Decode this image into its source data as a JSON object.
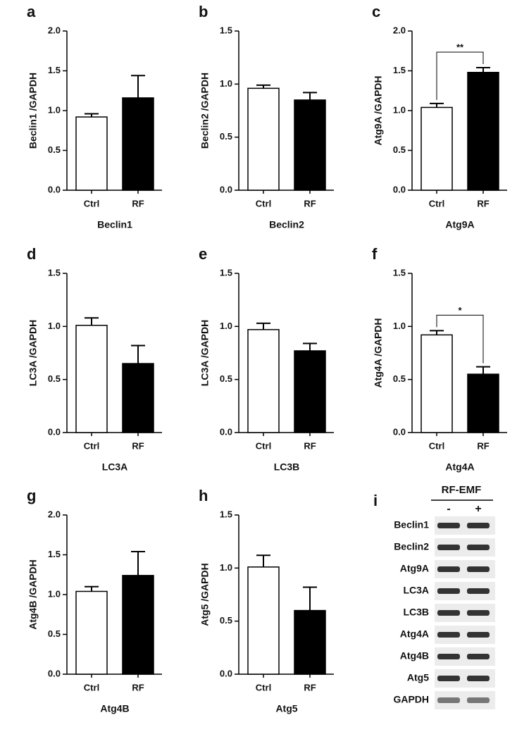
{
  "chart_data": [
    {
      "type": "bar",
      "panel": "a",
      "ylabel": "Beclin1 /GAPDH",
      "xlabel": "Beclin1",
      "categories": [
        "Ctrl",
        "RF"
      ],
      "values": [
        0.92,
        1.16
      ],
      "errors": [
        0.04,
        0.28
      ],
      "colors": [
        "#ffffff",
        "#000000"
      ],
      "ylim": [
        0,
        2
      ],
      "yticks": [
        {
          "value": 0,
          "label": "0.0"
        },
        {
          "value": 0.5,
          "label": "0.5"
        },
        {
          "value": 1,
          "label": "1.0"
        },
        {
          "value": 1.5,
          "label": "1.5"
        },
        {
          "value": 2,
          "label": "2.0"
        }
      ]
    },
    {
      "type": "bar",
      "panel": "b",
      "ylabel": "Beclin2 /GAPDH",
      "xlabel": "Beclin2",
      "categories": [
        "Ctrl",
        "RF"
      ],
      "values": [
        0.96,
        0.85
      ],
      "errors": [
        0.03,
        0.07
      ],
      "colors": [
        "#ffffff",
        "#000000"
      ],
      "ylim": [
        0,
        1.5
      ],
      "yticks": [
        {
          "value": 0,
          "label": "0.0"
        },
        {
          "value": 0.5,
          "label": "0.5"
        },
        {
          "value": 1,
          "label": "1.0"
        },
        {
          "value": 1.5,
          "label": "1.5"
        }
      ]
    },
    {
      "type": "bar",
      "panel": "c",
      "ylabel": "Atg9A /GAPDH",
      "xlabel": "Atg9A",
      "annotation": "**",
      "categories": [
        "Ctrl",
        "RF"
      ],
      "values": [
        1.04,
        1.48
      ],
      "errors": [
        0.05,
        0.06
      ],
      "colors": [
        "#ffffff",
        "#000000"
      ],
      "ylim": [
        0,
        2
      ],
      "yticks": [
        {
          "value": 0,
          "label": "0.0"
        },
        {
          "value": 0.5,
          "label": "0.5"
        },
        {
          "value": 1,
          "label": "1.0"
        },
        {
          "value": 1.5,
          "label": "1.5"
        },
        {
          "value": 2,
          "label": "2.0"
        }
      ]
    },
    {
      "type": "bar",
      "panel": "d",
      "ylabel": "LC3A /GAPDH",
      "xlabel": "LC3A",
      "categories": [
        "Ctrl",
        "RF"
      ],
      "values": [
        1.01,
        0.65
      ],
      "errors": [
        0.07,
        0.17
      ],
      "colors": [
        "#ffffff",
        "#000000"
      ],
      "ylim": [
        0,
        1.5
      ],
      "yticks": [
        {
          "value": 0,
          "label": "0.0"
        },
        {
          "value": 0.5,
          "label": "0.5"
        },
        {
          "value": 1,
          "label": "1.0"
        },
        {
          "value": 1.5,
          "label": "1.5"
        }
      ]
    },
    {
      "type": "bar",
      "panel": "e",
      "ylabel": "LC3A /GAPDH",
      "xlabel": "LC3B",
      "categories": [
        "Ctrl",
        "RF"
      ],
      "values": [
        0.97,
        0.77
      ],
      "errors": [
        0.06,
        0.07
      ],
      "colors": [
        "#ffffff",
        "#000000"
      ],
      "ylim": [
        0,
        1.5
      ],
      "yticks": [
        {
          "value": 0,
          "label": "0.0"
        },
        {
          "value": 0.5,
          "label": "0.5"
        },
        {
          "value": 1,
          "label": "1.0"
        },
        {
          "value": 1.5,
          "label": "1.5"
        }
      ]
    },
    {
      "type": "bar",
      "panel": "f",
      "ylabel": "Atg4A /GAPDH",
      "xlabel": "Atg4A",
      "annotation": "*",
      "categories": [
        "Ctrl",
        "RF"
      ],
      "values": [
        0.92,
        0.55
      ],
      "errors": [
        0.04,
        0.07
      ],
      "colors": [
        "#ffffff",
        "#000000"
      ],
      "ylim": [
        0,
        1.5
      ],
      "yticks": [
        {
          "value": 0,
          "label": "0.0"
        },
        {
          "value": 0.5,
          "label": "0.5"
        },
        {
          "value": 1,
          "label": "1.0"
        },
        {
          "value": 1.5,
          "label": "1.5"
        }
      ]
    },
    {
      "type": "bar",
      "panel": "g",
      "ylabel": "Atg4B /GAPDH",
      "xlabel": "Atg4B",
      "categories": [
        "Ctrl",
        "RF"
      ],
      "values": [
        1.04,
        1.24
      ],
      "errors": [
        0.06,
        0.3
      ],
      "colors": [
        "#ffffff",
        "#000000"
      ],
      "ylim": [
        0,
        2
      ],
      "yticks": [
        {
          "value": 0,
          "label": "0.0"
        },
        {
          "value": 0.5,
          "label": "0.5"
        },
        {
          "value": 1,
          "label": "1.0"
        },
        {
          "value": 1.5,
          "label": "1.5"
        },
        {
          "value": 2,
          "label": "2.0"
        }
      ]
    },
    {
      "type": "bar",
      "panel": "h",
      "ylabel": "Atg5 /GAPDH",
      "xlabel": "Atg5",
      "categories": [
        "Ctrl",
        "RF"
      ],
      "values": [
        1.01,
        0.6
      ],
      "errors": [
        0.11,
        0.22
      ],
      "colors": [
        "#ffffff",
        "#000000"
      ],
      "ylim": [
        0,
        1.5
      ],
      "yticks": [
        {
          "value": 0,
          "label": "0.0"
        },
        {
          "value": 0.5,
          "label": "0.5"
        },
        {
          "value": 1,
          "label": "1.0"
        },
        {
          "value": 1.5,
          "label": "1.5"
        }
      ]
    }
  ],
  "gel": {
    "panel": "i",
    "title": "RF-EMF",
    "lanes": [
      "-",
      "+"
    ],
    "rows": [
      "Beclin1",
      "Beclin2",
      "Atg9A",
      "LC3A",
      "LC3B",
      "Atg4A",
      "Atg4B",
      "Atg5",
      "GAPDH"
    ]
  }
}
